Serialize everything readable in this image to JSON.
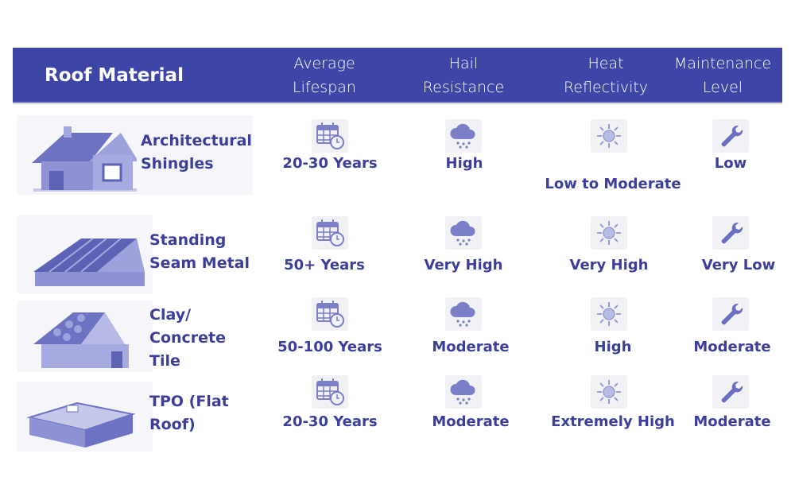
{
  "header": {
    "material": "Roof Material",
    "lifespan": "Average Lifespan",
    "hail": "Hail Resistance",
    "heat": "Heat Reflectivity",
    "maintenance": "Maintenance Level"
  },
  "colors": {
    "header_bg": "#3d45a6",
    "text": "#3b3f9a",
    "icon": "#7a7fc8"
  },
  "icons": {
    "lifespan": "calendar-clock-icon",
    "hail": "hail-cloud-icon",
    "heat": "sun-icon",
    "maintenance": "wrench-icon"
  },
  "rows": [
    {
      "material": "Architectural Shingles",
      "lifespan": "20-30 Years",
      "hail": "High",
      "heat": "Low to Moderate",
      "maintenance": "Low"
    },
    {
      "material": "Standing Seam Metal",
      "lifespan": "50+ Years",
      "hail": "Very High",
      "heat": "Very High",
      "maintenance": "Very Low"
    },
    {
      "material": "Clay/ Concrete Tile",
      "lifespan": "50-100 Years",
      "hail": "Moderate",
      "heat": "High",
      "maintenance": "Moderate"
    },
    {
      "material": "TPO (Flat Roof)",
      "lifespan": "20-30 Years",
      "hail": "Moderate",
      "heat": "Extremely High",
      "maintenance": "Moderate"
    }
  ]
}
